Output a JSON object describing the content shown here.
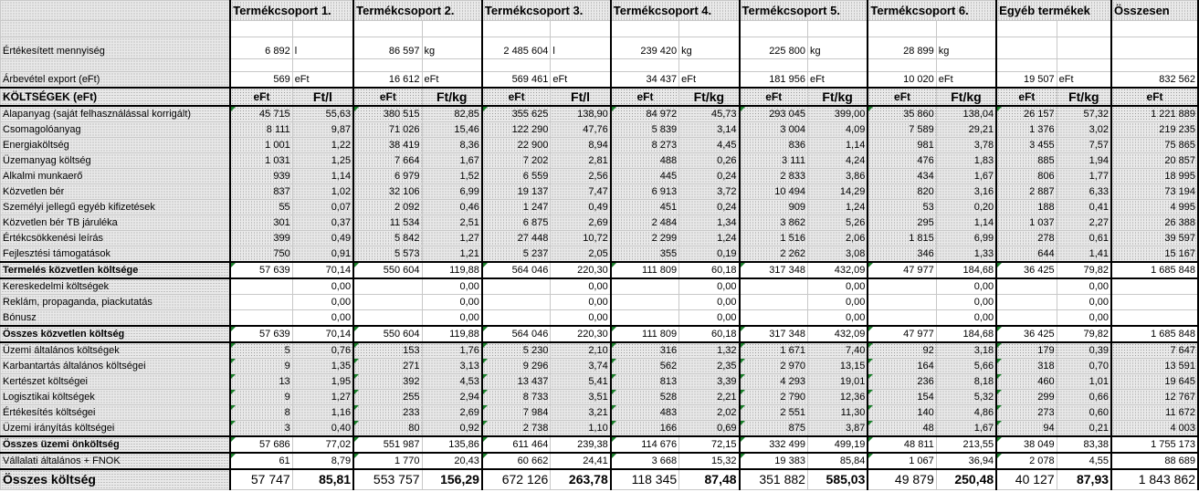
{
  "headers": {
    "groups": [
      "Termékcsoport 1.",
      "Termékcsoport 2.",
      "Termékcsoport 3.",
      "Termékcsoport 4.",
      "Termékcsoport 5.",
      "Termékcsoport 6.",
      "Egyéb termékek"
    ],
    "total": "Összesen"
  },
  "qty_row": {
    "label": "Értékesített mennyiség",
    "cells": [
      {
        "v": "6 892",
        "u": "l"
      },
      {
        "v": "86 597",
        "u": "kg"
      },
      {
        "v": "2 485 604",
        "u": "l"
      },
      {
        "v": "239 420",
        "u": "kg"
      },
      {
        "v": "225 800",
        "u": "kg"
      },
      {
        "v": "28 899",
        "u": "kg"
      },
      {
        "v": "",
        "u": ""
      }
    ],
    "total": ""
  },
  "rev_row": {
    "label": "Árbevétel export (eFt)",
    "cells": [
      {
        "v": "569",
        "u": "eFt"
      },
      {
        "v": "16 612",
        "u": "eFt"
      },
      {
        "v": "569 461",
        "u": "eFt"
      },
      {
        "v": "34 437",
        "u": "eFt"
      },
      {
        "v": "181 956",
        "u": "eFt"
      },
      {
        "v": "10 020",
        "u": "eFt"
      },
      {
        "v": "19 507",
        "u": "eFt"
      }
    ],
    "total": "832 562"
  },
  "unit_row": {
    "label": "KÖLTSÉGEK (eFt)",
    "cells": [
      {
        "a": "eFt",
        "b": "Ft/l"
      },
      {
        "a": "eFt",
        "b": "Ft/kg"
      },
      {
        "a": "eFt",
        "b": "Ft/l"
      },
      {
        "a": "eFt",
        "b": "Ft/kg"
      },
      {
        "a": "eFt",
        "b": "Ft/kg"
      },
      {
        "a": "eFt",
        "b": "Ft/kg"
      },
      {
        "a": "eFt",
        "b": "Ft/kg"
      }
    ],
    "total": "eFt"
  },
  "rows": [
    {
      "label": "Alapanyag (saját felhasználással korrigált)",
      "vals": [
        [
          "45 715",
          "55,63"
        ],
        [
          "380 515",
          "82,85"
        ],
        [
          "355 625",
          "138,90"
        ],
        [
          "84 972",
          "45,73"
        ],
        [
          "293 045",
          "399,00"
        ],
        [
          "35 860",
          "138,04"
        ],
        [
          "26 157",
          "57,32"
        ]
      ],
      "total": "1 221 889"
    },
    {
      "label": "Csomagolóanyag",
      "vals": [
        [
          "8 111",
          "9,87"
        ],
        [
          "71 026",
          "15,46"
        ],
        [
          "122 290",
          "47,76"
        ],
        [
          "5 839",
          "3,14"
        ],
        [
          "3 004",
          "4,09"
        ],
        [
          "7 589",
          "29,21"
        ],
        [
          "1 376",
          "3,02"
        ]
      ],
      "total": "219 235"
    },
    {
      "label": "Energiaköltség",
      "vals": [
        [
          "1 001",
          "1,22"
        ],
        [
          "38 419",
          "8,36"
        ],
        [
          "22 900",
          "8,94"
        ],
        [
          "8 273",
          "4,45"
        ],
        [
          "836",
          "1,14"
        ],
        [
          "981",
          "3,78"
        ],
        [
          "3 455",
          "7,57"
        ]
      ],
      "total": "75 865"
    },
    {
      "label": "Üzemanyag költség",
      "vals": [
        [
          "1 031",
          "1,25"
        ],
        [
          "7 664",
          "1,67"
        ],
        [
          "7 202",
          "2,81"
        ],
        [
          "488",
          "0,26"
        ],
        [
          "3 111",
          "4,24"
        ],
        [
          "476",
          "1,83"
        ],
        [
          "885",
          "1,94"
        ]
      ],
      "total": "20 857"
    },
    {
      "label": "Alkalmi munkaerő",
      "vals": [
        [
          "939",
          "1,14"
        ],
        [
          "6 979",
          "1,52"
        ],
        [
          "6 559",
          "2,56"
        ],
        [
          "445",
          "0,24"
        ],
        [
          "2 833",
          "3,86"
        ],
        [
          "434",
          "1,67"
        ],
        [
          "806",
          "1,77"
        ]
      ],
      "total": "18 995"
    },
    {
      "label": "Közvetlen bér",
      "vals": [
        [
          "837",
          "1,02"
        ],
        [
          "32 106",
          "6,99"
        ],
        [
          "19 137",
          "7,47"
        ],
        [
          "6 913",
          "3,72"
        ],
        [
          "10 494",
          "14,29"
        ],
        [
          "820",
          "3,16"
        ],
        [
          "2 887",
          "6,33"
        ]
      ],
      "total": "73 194"
    },
    {
      "label": "Személyi jellegű egyéb kifizetések",
      "vals": [
        [
          "55",
          "0,07"
        ],
        [
          "2 092",
          "0,46"
        ],
        [
          "1 247",
          "0,49"
        ],
        [
          "451",
          "0,24"
        ],
        [
          "909",
          "1,24"
        ],
        [
          "53",
          "0,20"
        ],
        [
          "188",
          "0,41"
        ]
      ],
      "total": "4 995"
    },
    {
      "label": "Közvetlen bér TB járuléka",
      "vals": [
        [
          "301",
          "0,37"
        ],
        [
          "11 534",
          "2,51"
        ],
        [
          "6 875",
          "2,69"
        ],
        [
          "2 484",
          "1,34"
        ],
        [
          "3 862",
          "5,26"
        ],
        [
          "295",
          "1,14"
        ],
        [
          "1 037",
          "2,27"
        ]
      ],
      "total": "26 388"
    },
    {
      "label": "Értékcsökkenési leírás",
      "vals": [
        [
          "399",
          "0,49"
        ],
        [
          "5 842",
          "1,27"
        ],
        [
          "27 448",
          "10,72"
        ],
        [
          "2 299",
          "1,24"
        ],
        [
          "1 516",
          "2,06"
        ],
        [
          "1 815",
          "6,99"
        ],
        [
          "278",
          "0,61"
        ]
      ],
      "total": "39 597"
    },
    {
      "label": "Fejlesztési támogatások",
      "vals": [
        [
          "750",
          "0,91"
        ],
        [
          "5 573",
          "1,21"
        ],
        [
          "5 237",
          "2,05"
        ],
        [
          "355",
          "0,19"
        ],
        [
          "2 262",
          "3,08"
        ],
        [
          "346",
          "1,33"
        ],
        [
          "644",
          "1,41"
        ]
      ],
      "total": "15 167"
    }
  ],
  "subtotal1": {
    "label": "Termelés közvetlen költsége",
    "vals": [
      [
        "57 639",
        "70,14"
      ],
      [
        "550 604",
        "119,88"
      ],
      [
        "564 046",
        "220,30"
      ],
      [
        "111 809",
        "60,18"
      ],
      [
        "317 348",
        "432,09"
      ],
      [
        "47 977",
        "184,68"
      ],
      [
        "36 425",
        "79,82"
      ]
    ],
    "total": "1 685 848"
  },
  "rows2": [
    {
      "label": "Kereskedelmi költségek",
      "vals": [
        [
          "",
          "0,00"
        ],
        [
          "",
          "0,00"
        ],
        [
          "",
          "0,00"
        ],
        [
          "",
          "0,00"
        ],
        [
          "",
          "0,00"
        ],
        [
          "",
          "0,00"
        ],
        [
          "",
          "0,00"
        ]
      ],
      "total": ""
    },
    {
      "label": "Reklám, propaganda, piackutatás",
      "vals": [
        [
          "",
          "0,00"
        ],
        [
          "",
          "0,00"
        ],
        [
          "",
          "0,00"
        ],
        [
          "",
          "0,00"
        ],
        [
          "",
          "0,00"
        ],
        [
          "",
          "0,00"
        ],
        [
          "",
          "0,00"
        ]
      ],
      "total": ""
    },
    {
      "label": "Bónusz",
      "vals": [
        [
          "",
          "0,00"
        ],
        [
          "",
          "0,00"
        ],
        [
          "",
          "0,00"
        ],
        [
          "",
          "0,00"
        ],
        [
          "",
          "0,00"
        ],
        [
          "",
          "0,00"
        ],
        [
          "",
          "0,00"
        ]
      ],
      "total": ""
    }
  ],
  "subtotal2": {
    "label": "Összes közvetlen költség",
    "vals": [
      [
        "57 639",
        "70,14"
      ],
      [
        "550 604",
        "119,88"
      ],
      [
        "564 046",
        "220,30"
      ],
      [
        "111 809",
        "60,18"
      ],
      [
        "317 348",
        "432,09"
      ],
      [
        "47 977",
        "184,68"
      ],
      [
        "36 425",
        "79,82"
      ]
    ],
    "total": "1 685 848"
  },
  "rows3": [
    {
      "label": "Üzemi általános költségek",
      "vals": [
        [
          "5",
          "0,76"
        ],
        [
          "153",
          "1,76"
        ],
        [
          "5 230",
          "2,10"
        ],
        [
          "316",
          "1,32"
        ],
        [
          "1 671",
          "7,40"
        ],
        [
          "92",
          "3,18"
        ],
        [
          "179",
          "0,39"
        ]
      ],
      "total": "7 647"
    },
    {
      "label": "Karbantartás általános költségei",
      "vals": [
        [
          "9",
          "1,35"
        ],
        [
          "271",
          "3,13"
        ],
        [
          "9 296",
          "3,74"
        ],
        [
          "562",
          "2,35"
        ],
        [
          "2 970",
          "13,15"
        ],
        [
          "164",
          "5,66"
        ],
        [
          "318",
          "0,70"
        ]
      ],
      "total": "13 591"
    },
    {
      "label": "Kertészet költségei",
      "vals": [
        [
          "13",
          "1,95"
        ],
        [
          "392",
          "4,53"
        ],
        [
          "13 437",
          "5,41"
        ],
        [
          "813",
          "3,39"
        ],
        [
          "4 293",
          "19,01"
        ],
        [
          "236",
          "8,18"
        ],
        [
          "460",
          "1,01"
        ]
      ],
      "total": "19 645"
    },
    {
      "label": "Logisztikai költségek",
      "vals": [
        [
          "9",
          "1,27"
        ],
        [
          "255",
          "2,94"
        ],
        [
          "8 733",
          "3,51"
        ],
        [
          "528",
          "2,21"
        ],
        [
          "2 790",
          "12,36"
        ],
        [
          "154",
          "5,32"
        ],
        [
          "299",
          "0,66"
        ]
      ],
      "total": "12 767"
    },
    {
      "label": "Értékesítés költségei",
      "vals": [
        [
          "8",
          "1,16"
        ],
        [
          "233",
          "2,69"
        ],
        [
          "7 984",
          "3,21"
        ],
        [
          "483",
          "2,02"
        ],
        [
          "2 551",
          "11,30"
        ],
        [
          "140",
          "4,86"
        ],
        [
          "273",
          "0,60"
        ]
      ],
      "total": "11 672"
    },
    {
      "label": "Üzemi irányítás költségei",
      "vals": [
        [
          "3",
          "0,40"
        ],
        [
          "80",
          "0,92"
        ],
        [
          "2 738",
          "1,10"
        ],
        [
          "166",
          "0,69"
        ],
        [
          "875",
          "3,87"
        ],
        [
          "48",
          "1,67"
        ],
        [
          "94",
          "0,21"
        ]
      ],
      "total": "4 003"
    }
  ],
  "subtotal3": {
    "label": "Összes üzemi önköltség",
    "vals": [
      [
        "57 686",
        "77,02"
      ],
      [
        "551 987",
        "135,86"
      ],
      [
        "611 464",
        "239,38"
      ],
      [
        "114 676",
        "72,15"
      ],
      [
        "332 499",
        "499,19"
      ],
      [
        "48 811",
        "213,55"
      ],
      [
        "38 049",
        "83,38"
      ]
    ],
    "total": "1 755 173"
  },
  "overhead": {
    "label": "Vállalati általános + FNOK",
    "vals": [
      [
        "61",
        "8,79"
      ],
      [
        "1 770",
        "20,43"
      ],
      [
        "60 662",
        "24,41"
      ],
      [
        "3 668",
        "15,32"
      ],
      [
        "19 383",
        "85,84"
      ],
      [
        "1 067",
        "36,94"
      ],
      [
        "2 078",
        "4,55"
      ]
    ],
    "total": "88 689"
  },
  "grand": {
    "label": "Összes költség",
    "vals": [
      [
        "57 747",
        "85,81"
      ],
      [
        "553 757",
        "156,29"
      ],
      [
        "672 126",
        "263,78"
      ],
      [
        "118 345",
        "87,48"
      ],
      [
        "351 882",
        "585,03"
      ],
      [
        "49 879",
        "250,48"
      ],
      [
        "40 127",
        "87,93"
      ]
    ],
    "total": "1 843 862"
  }
}
